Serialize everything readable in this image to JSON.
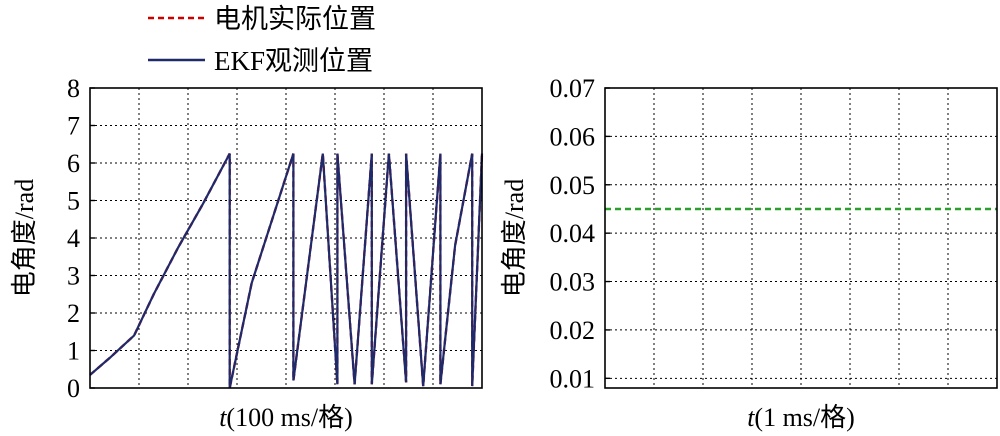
{
  "chart_data": [
    {
      "type": "line",
      "xlabel_italic": "t",
      "xlabel_rest": "(100 ms/格)",
      "ylabel": "电角度/rad",
      "ylim": [
        0,
        8
      ],
      "yticks": [
        0,
        1,
        2,
        3,
        4,
        5,
        6,
        7,
        8
      ],
      "xlim": [
        0,
        8
      ],
      "grid": true,
      "legend_placement": "top-left",
      "series": [
        {
          "name": "电机实际位置",
          "color": "#cc0000",
          "style": "dashed",
          "x": [
            0,
            0.4,
            0.9,
            1.3,
            1.8,
            2.3,
            2.85,
            2.85,
            3.3,
            4.15,
            4.15,
            4.75,
            5.05,
            5.05,
            5.4,
            5.75,
            5.75,
            6.1,
            6.45,
            6.45,
            6.8,
            7.15,
            7.15,
            7.45,
            7.8,
            7.8,
            8.0
          ],
          "y": [
            0.35,
            0.8,
            1.4,
            2.5,
            3.75,
            4.9,
            6.25,
            0,
            2.8,
            6.25,
            0.2,
            6.25,
            0.1,
            6.25,
            0.1,
            6.25,
            0.1,
            6.25,
            0.15,
            6.25,
            0.05,
            6.25,
            0.1,
            3.8,
            6.25,
            0.05,
            6.25
          ]
        },
        {
          "name": "EKF观测位置",
          "color": "#1f2a6b",
          "style": "solid",
          "x": [
            0,
            0.4,
            0.9,
            1.3,
            1.8,
            2.3,
            2.85,
            2.85,
            3.3,
            4.15,
            4.15,
            4.75,
            5.05,
            5.05,
            5.4,
            5.75,
            5.75,
            6.1,
            6.45,
            6.45,
            6.8,
            7.15,
            7.15,
            7.45,
            7.8,
            7.8,
            8.0
          ],
          "y": [
            0.35,
            0.8,
            1.4,
            2.5,
            3.75,
            4.9,
            6.25,
            0,
            2.8,
            6.25,
            0.2,
            6.25,
            0.1,
            6.25,
            0.1,
            6.25,
            0.1,
            6.25,
            0.15,
            6.25,
            0.05,
            6.25,
            0.1,
            3.8,
            6.25,
            0.05,
            6.25
          ]
        }
      ]
    },
    {
      "type": "line",
      "xlabel_italic": "t",
      "xlabel_rest": "(1 ms/格)",
      "ylabel": "电角度/rad",
      "ylim": [
        0.008,
        0.07
      ],
      "yticks": [
        0.01,
        0.02,
        0.03,
        0.04,
        0.05,
        0.06,
        0.07
      ],
      "ytick_labels": [
        "0.01",
        "0.02",
        "0.03",
        "0.04",
        "0.05",
        "0.06",
        "0.07"
      ],
      "xlim": [
        0,
        8
      ],
      "grid": true,
      "series": [
        {
          "color": "#2ca02c",
          "style": "dashed",
          "x": [
            0,
            8
          ],
          "y": [
            0.045,
            0.045
          ]
        }
      ]
    }
  ]
}
